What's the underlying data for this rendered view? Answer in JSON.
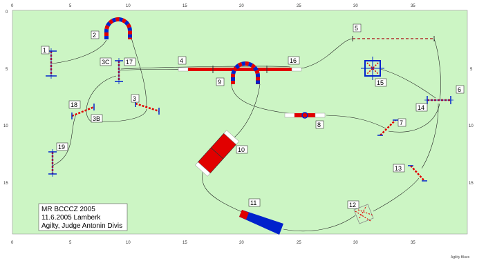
{
  "course": {
    "axis_top": [
      "0",
      "5",
      "10",
      "15",
      "20",
      "25",
      "30",
      "35"
    ],
    "axis_bottom": [
      "0",
      "5",
      "10",
      "15",
      "20",
      "25",
      "30",
      "35"
    ],
    "axis_left": [
      "0",
      "5",
      "10",
      "15"
    ],
    "axis_right": [
      "5",
      "10",
      "15"
    ],
    "obstacles": [
      {
        "id": "o1",
        "label": "1"
      },
      {
        "id": "o2",
        "label": "2"
      },
      {
        "id": "o3",
        "label": "3"
      },
      {
        "id": "o3c",
        "label": "3C"
      },
      {
        "id": "o3b",
        "label": "3B"
      },
      {
        "id": "o4",
        "label": "4"
      },
      {
        "id": "o5",
        "label": "5"
      },
      {
        "id": "o6",
        "label": "6"
      },
      {
        "id": "o7",
        "label": "7"
      },
      {
        "id": "o8",
        "label": "8"
      },
      {
        "id": "o9",
        "label": "9"
      },
      {
        "id": "o10",
        "label": "10"
      },
      {
        "id": "o11",
        "label": "11"
      },
      {
        "id": "o12",
        "label": "12"
      },
      {
        "id": "o13",
        "label": "13"
      },
      {
        "id": "o14",
        "label": "14"
      },
      {
        "id": "o15",
        "label": "15"
      },
      {
        "id": "o16",
        "label": "16"
      },
      {
        "id": "o17",
        "label": "17"
      },
      {
        "id": "o18",
        "label": "18"
      },
      {
        "id": "o19",
        "label": "19"
      }
    ],
    "info": {
      "line1": "MR BCCCZ 2005",
      "line2": "11.6.2005 Lamberk",
      "line3": "Agilty, Judge Antonin Divis"
    },
    "footer": "Agility Blues",
    "colors": {
      "field": "#ccf5c4",
      "red": "#e10000",
      "blue": "#0022cc",
      "path": "#222222"
    }
  }
}
